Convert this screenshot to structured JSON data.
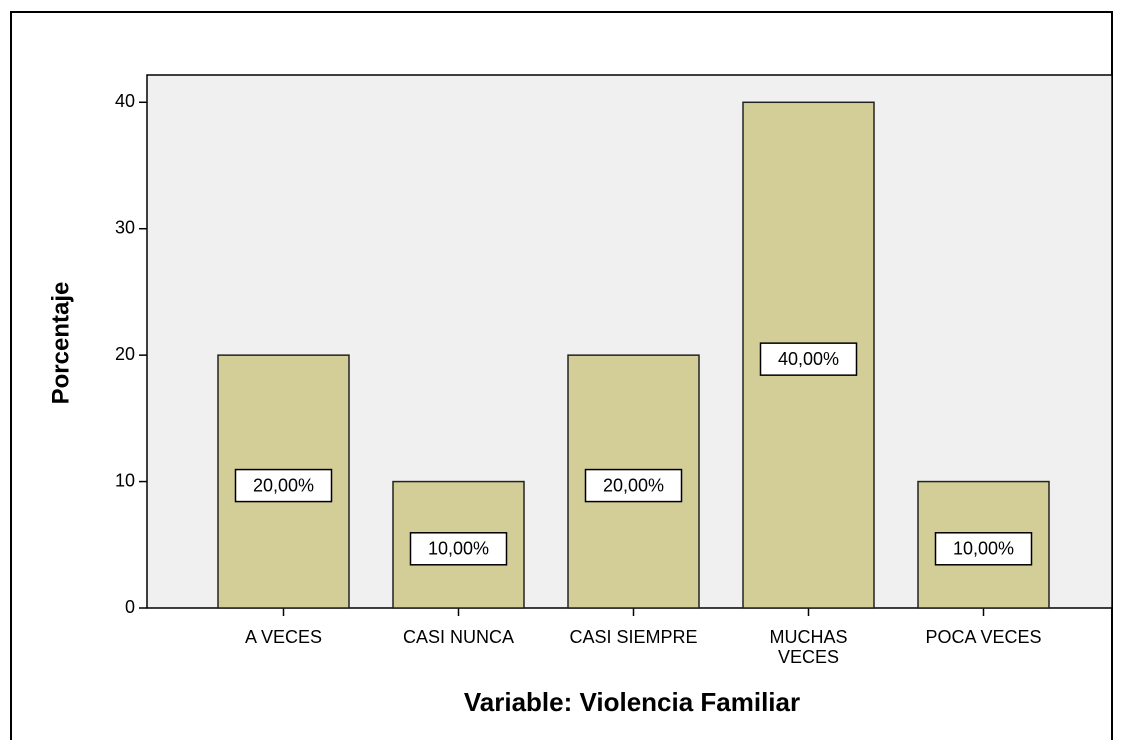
{
  "chart_data": {
    "type": "bar",
    "x_label": "Variable: Violencia Familiar",
    "y_label": "Porcentaje",
    "categories": [
      "A VECES",
      "CASI NUNCA",
      "CASI SIEMPRE",
      "MUCHAS\nVECES",
      "POCA VECES"
    ],
    "values": [
      20,
      10,
      20,
      40,
      10
    ],
    "value_labels": [
      "20,00%",
      "10,00%",
      "20,00%",
      "40,00%",
      "10,00%"
    ],
    "color": "#d3ce97",
    "ylim": [
      0,
      42
    ],
    "yticks": [
      0,
      10,
      20,
      30,
      40
    ]
  }
}
